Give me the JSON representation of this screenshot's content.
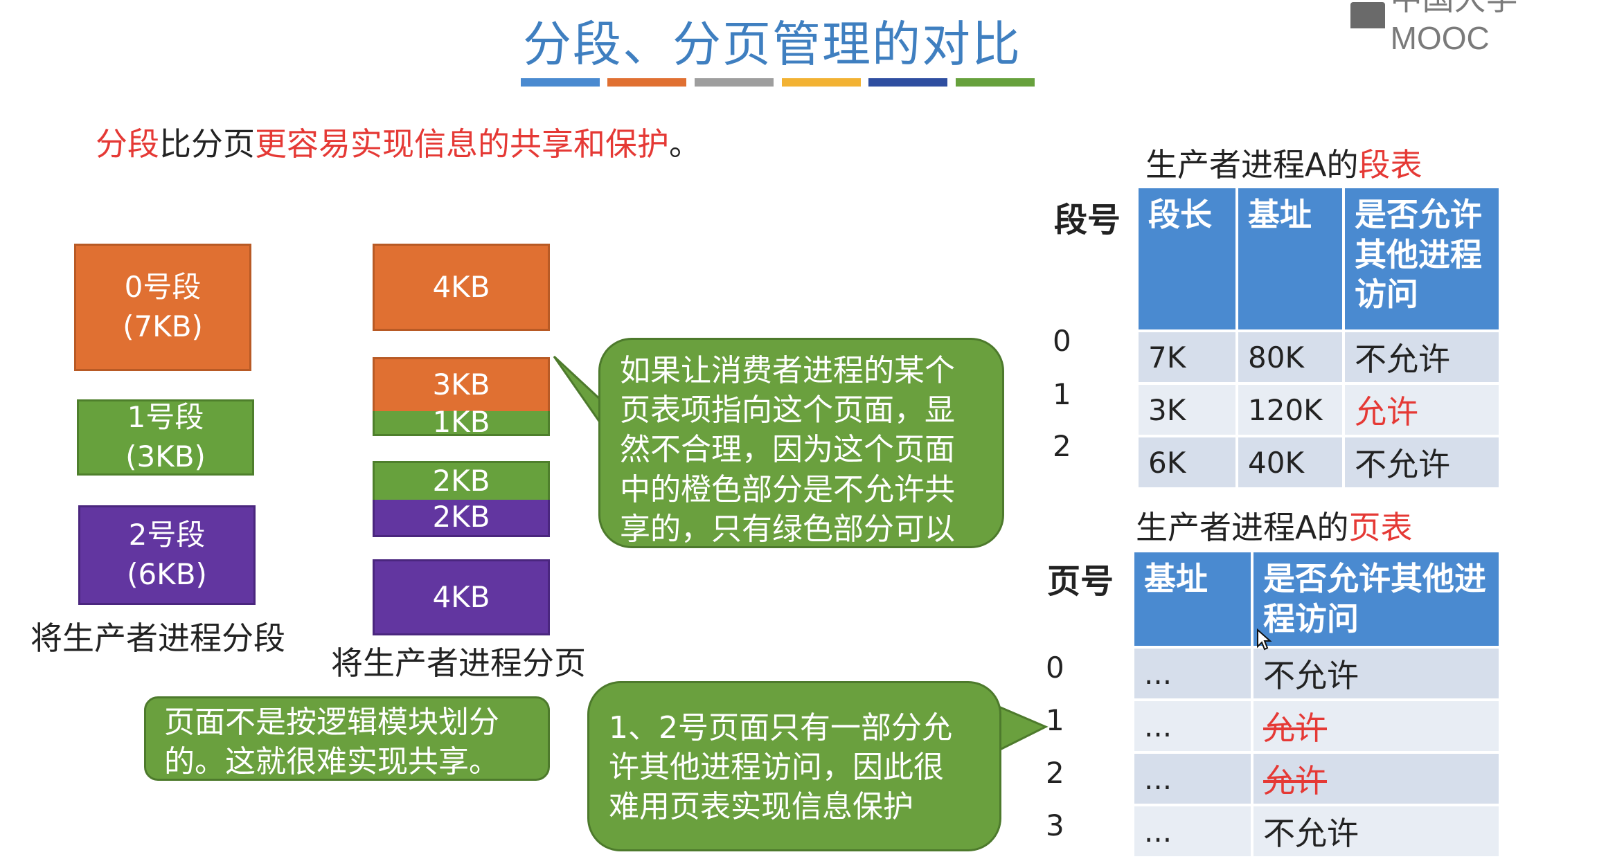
{
  "title": "分段、分页管理的对比",
  "color_bar": [
    "#4a8ad0",
    "#e07032",
    "#9e9e9e",
    "#f2b233",
    "#2e4ea0",
    "#67a13d"
  ],
  "logo": {
    "icon": "mooc-logo-icon",
    "text": "中国大学MOOC"
  },
  "intro": {
    "part1": "分段",
    "part2": "比分页",
    "part3": "更容易实现信息的共享和保护",
    "part4": "。"
  },
  "segments": [
    {
      "name": "0号段",
      "size": "(7KB)"
    },
    {
      "name": "1号段",
      "size": "(3KB)"
    },
    {
      "name": "2号段",
      "size": "(6KB)"
    }
  ],
  "segment_caption": "将生产者进程分段",
  "pages": {
    "p0": "4KB",
    "p1a": "3KB",
    "p1b": "1KB",
    "p2a": "2KB",
    "p2b": "2KB",
    "p3": "4KB"
  },
  "page_caption": "将生产者进程分页",
  "callout_consumer": [
    "如果让消费者进程的某个",
    "页表项指向这个页面，显",
    "然不合理，因为这个页面",
    "中的橙色部分是不允许共",
    "享的，只有绿色部分可以"
  ],
  "callout_logic": [
    "页面不是按逻辑模块划分",
    "的。这就很难实现共享。"
  ],
  "callout_protect": [
    "1、2号页面只有一部分允",
    "许其他进程访问，因此很",
    "难用页表实现信息保护"
  ],
  "segment_table": {
    "label_prefix": "生产者进程A的",
    "label_suffix": "段表",
    "row_header": "段号",
    "headers": [
      "段长",
      "基址",
      "是否允许其他进程访问"
    ],
    "rows": [
      {
        "num": "0",
        "len": "7K",
        "base": "80K",
        "allow": "不允许"
      },
      {
        "num": "1",
        "len": "3K",
        "base": "120K",
        "allow": "允许"
      },
      {
        "num": "2",
        "len": "6K",
        "base": "40K",
        "allow": "不允许"
      }
    ]
  },
  "page_table": {
    "label_prefix": "生产者进程A的",
    "label_suffix": "页表",
    "row_header": "页号",
    "headers": [
      "基址",
      "是否允许其他进程访问"
    ],
    "rows": [
      {
        "num": "0",
        "base": "...",
        "allow": "不允许"
      },
      {
        "num": "1",
        "base": "...",
        "allow": "允许"
      },
      {
        "num": "2",
        "base": "...",
        "allow": "允许"
      },
      {
        "num": "3",
        "base": "...",
        "allow": "不允许"
      }
    ]
  }
}
